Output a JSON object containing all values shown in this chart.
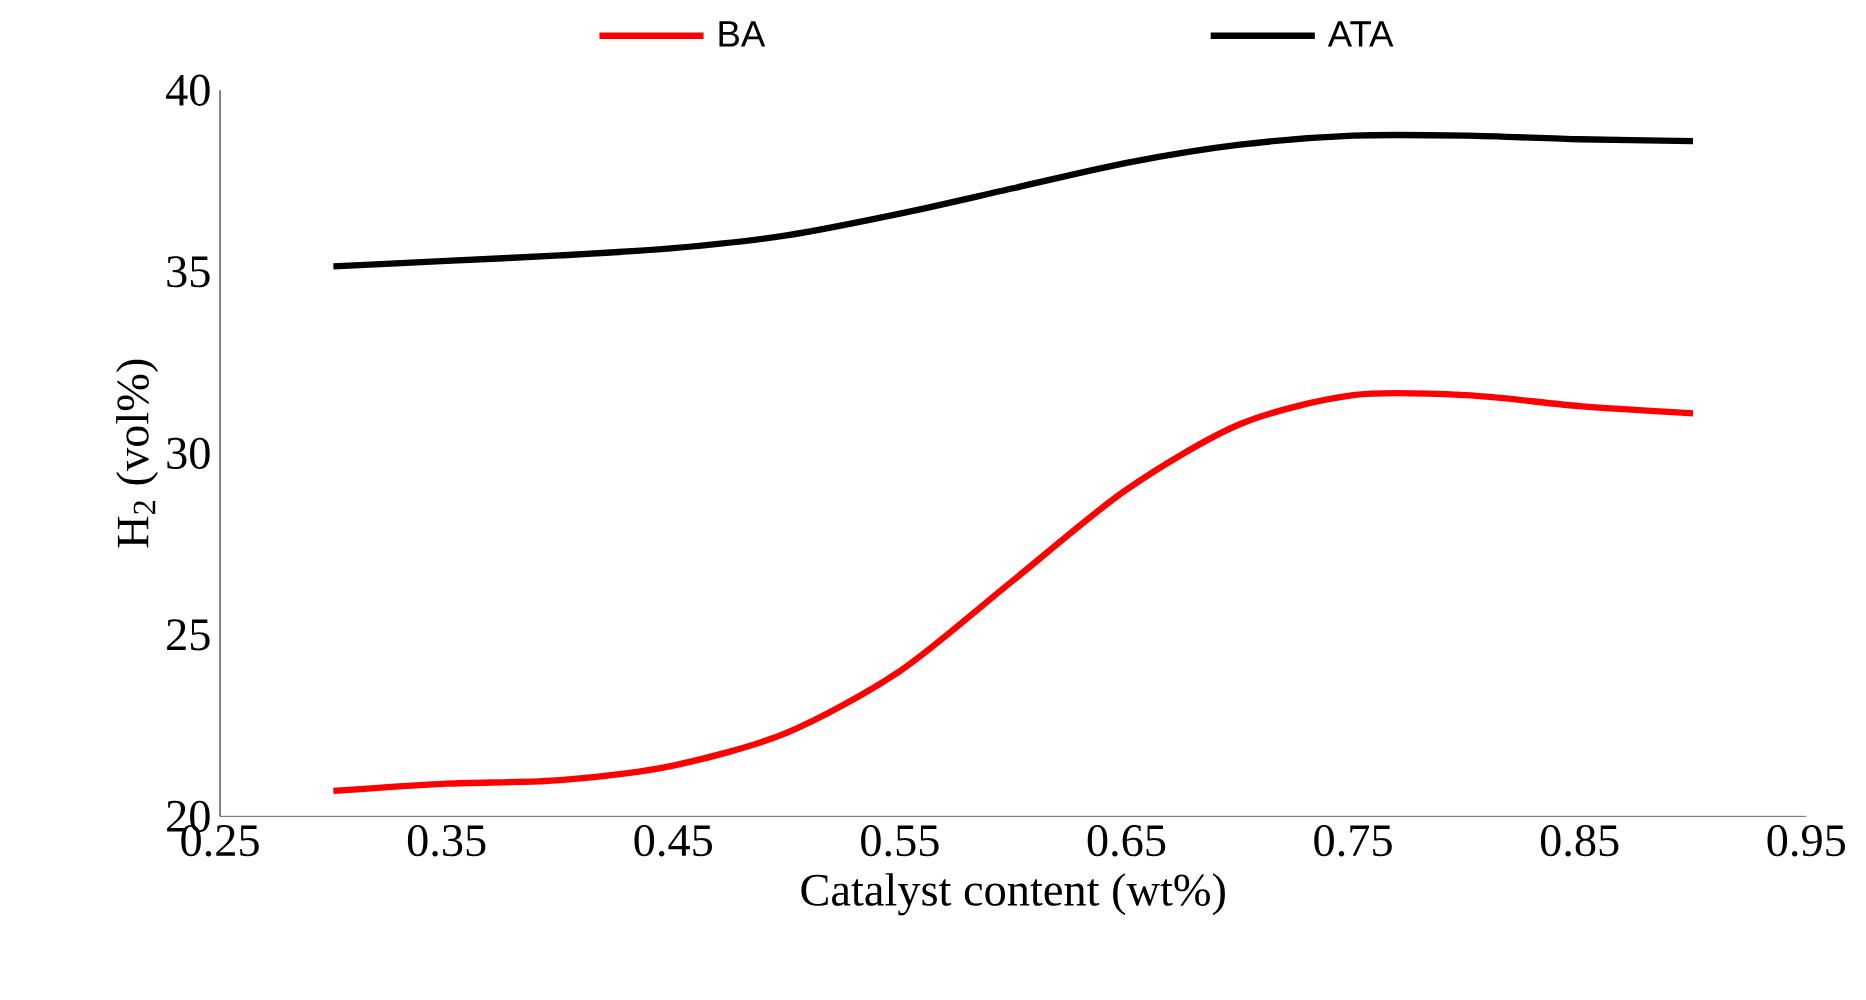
{
  "chart_data": {
    "type": "line",
    "xlabel": "Catalyst content (wt%)",
    "ylabel": "H$_{2}$ (vol%)",
    "xlim": [
      0.25,
      0.95
    ],
    "xticks": [
      0.25,
      0.35,
      0.45,
      0.55,
      0.65,
      0.75,
      0.85,
      0.95
    ],
    "ylim": [
      20,
      40
    ],
    "yticks": [
      20,
      25,
      30,
      35,
      40
    ],
    "x": [
      0.3,
      0.35,
      0.4,
      0.45,
      0.5,
      0.55,
      0.6,
      0.65,
      0.7,
      0.75,
      0.8,
      0.85,
      0.9
    ],
    "series": [
      {
        "name": "BA",
        "color": "#ff0000",
        "values": [
          20.7,
          20.9,
          21.0,
          21.4,
          22.3,
          24.0,
          26.5,
          29.0,
          30.8,
          31.6,
          31.6,
          31.3,
          31.1
        ]
      },
      {
        "name": "ATA",
        "color": "#000000",
        "values": [
          35.15,
          35.3,
          35.45,
          35.65,
          36.0,
          36.6,
          37.3,
          38.0,
          38.5,
          38.75,
          38.75,
          38.65,
          38.6
        ]
      }
    ],
    "legend": "top",
    "grid": false,
    "marker": "none",
    "line_style": "solid"
  }
}
